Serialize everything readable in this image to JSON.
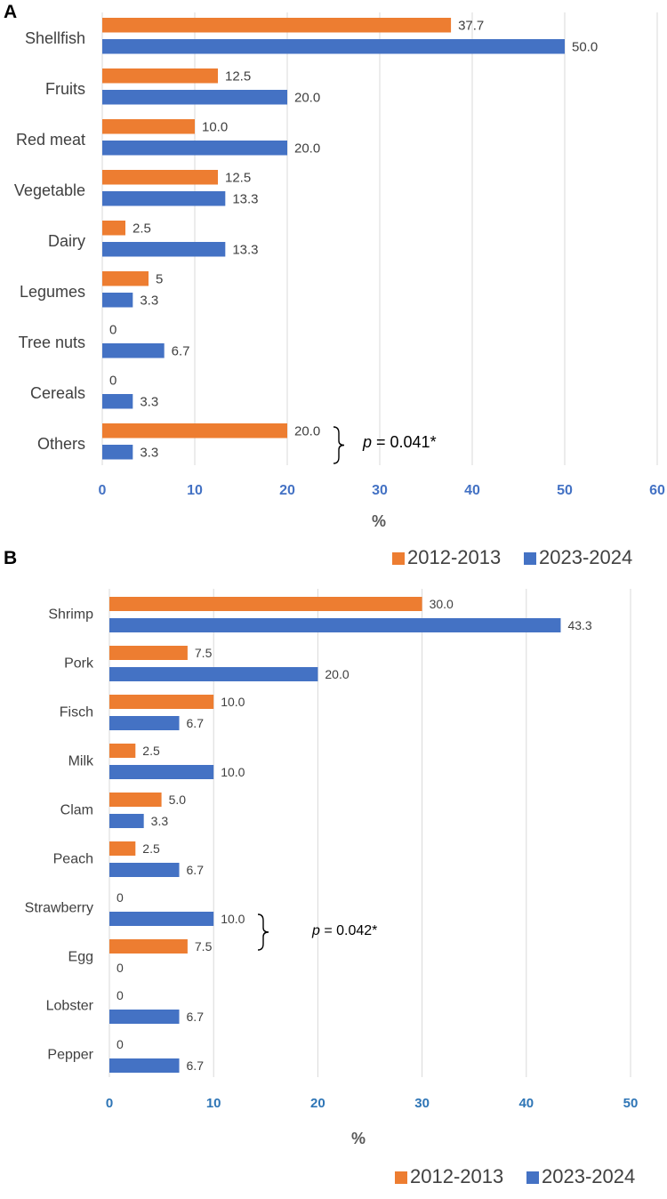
{
  "colors": {
    "series_2012": "#ed7d31",
    "series_2023": "#4472c4",
    "axis_A": "#4472c4",
    "axis_B": "#2e75b6"
  },
  "chart_data": [
    {
      "panel": "A",
      "type": "bar",
      "orientation": "horizontal",
      "categories": [
        "Shellfish",
        "Fruits",
        "Red meat",
        "Vegetable",
        "Dairy",
        "Legumes",
        "Tree nuts",
        "Cereals",
        "Others"
      ],
      "series": [
        {
          "name": "2012-2013",
          "values": [
            37.7,
            12.5,
            10.0,
            12.5,
            2.5,
            5,
            0,
            0,
            20.0
          ],
          "labels": [
            "37.7",
            "12.5",
            "10.0",
            "12.5",
            "2.5",
            "5",
            "0",
            "0",
            "20.0"
          ]
        },
        {
          "name": "2023-2024",
          "values": [
            50.0,
            20.0,
            20.0,
            13.3,
            13.3,
            3.3,
            6.7,
            3.3,
            3.3
          ],
          "labels": [
            "50.0",
            "20.0",
            "20.0",
            "13.3",
            "13.3",
            "3.3",
            "6.7",
            "3.3",
            "3.3"
          ]
        }
      ],
      "xlim": [
        0,
        60
      ],
      "xticks": [
        "0",
        "10",
        "20",
        "30",
        "40",
        "50",
        "60"
      ],
      "xlabel": "%",
      "annotation": {
        "category": "Others",
        "text": "= 0.041*",
        "italic_prefix": "p"
      },
      "grid": true
    },
    {
      "panel": "B",
      "type": "bar",
      "orientation": "horizontal",
      "categories": [
        "Shrimp",
        "Pork",
        "Fisch",
        "Milk",
        "Clam",
        "Peach",
        "Strawberry",
        "Egg",
        "Lobster",
        "Pepper"
      ],
      "series": [
        {
          "name": "2012-2013",
          "values": [
            30.0,
            7.5,
            10.0,
            2.5,
            5.0,
            2.5,
            0,
            7.5,
            0,
            0
          ],
          "labels": [
            "30.0",
            "7.5",
            "10.0",
            "2.5",
            "5.0",
            "2.5",
            "0",
            "7.5",
            "0",
            "0"
          ]
        },
        {
          "name": "2023-2024",
          "values": [
            43.3,
            20.0,
            6.7,
            10.0,
            3.3,
            6.7,
            10.0,
            0,
            6.7,
            6.7
          ],
          "labels": [
            "43.3",
            "20.0",
            "6.7",
            "10.0",
            "3.3",
            "6.7",
            "10.0",
            "0",
            "6.7",
            "6.7"
          ]
        }
      ],
      "xlim": [
        0,
        50
      ],
      "xticks": [
        "0",
        "10",
        "20",
        "30",
        "40",
        "50"
      ],
      "xlabel": "%",
      "annotation": {
        "category": "Strawberry",
        "text": "= 0.042*",
        "italic_prefix": "p"
      },
      "grid": true,
      "legend": [
        "2012-2013",
        "2023-2024"
      ]
    }
  ]
}
